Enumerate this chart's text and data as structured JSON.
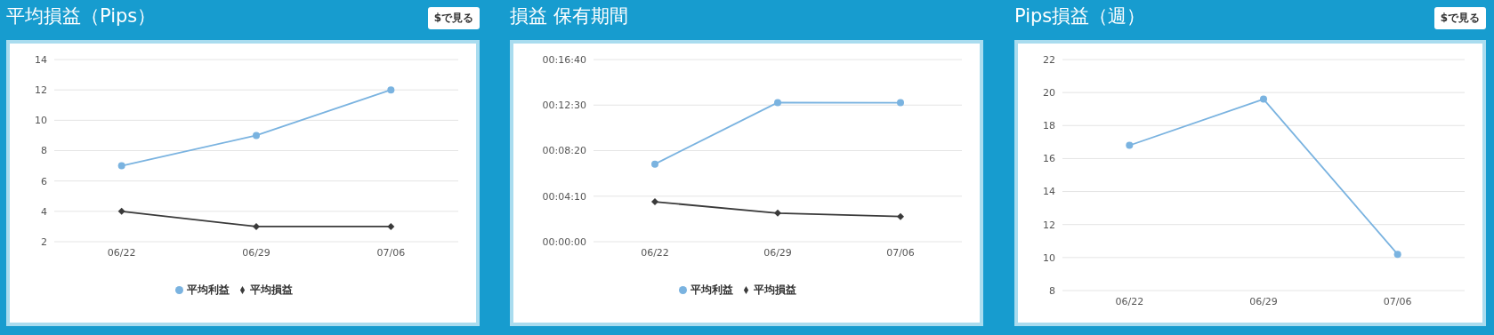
{
  "chart_data": [
    {
      "type": "line",
      "title": "平均損益（Pips）",
      "annotations": [
        "$で見る"
      ],
      "categories": [
        "06/22",
        "06/29",
        "07/06"
      ],
      "series": [
        {
          "name": "平均利益",
          "color": "#7ab3e0",
          "marker": "circle",
          "values": [
            7,
            9,
            12
          ]
        },
        {
          "name": "平均損益",
          "color": "#3a3a3a",
          "marker": "diamond",
          "values": [
            4,
            3,
            3
          ]
        }
      ],
      "ylim": [
        2,
        14
      ],
      "yticks": [
        2,
        4,
        6,
        8,
        10,
        12,
        14
      ],
      "grid": "y",
      "legend": "bottom"
    },
    {
      "type": "line",
      "title": "損益 保有期間",
      "categories": [
        "06/22",
        "06/29",
        "07/06"
      ],
      "series": [
        {
          "name": "平均利益",
          "color": "#7ab3e0",
          "marker": "circle",
          "values": [
            426,
            764,
            763
          ]
        },
        {
          "name": "平均損益",
          "color": "#3a3a3a",
          "marker": "diamond",
          "values": [
            219,
            157,
            138
          ]
        }
      ],
      "ylim": [
        0,
        1000
      ],
      "yticks": [
        {
          "value": 0,
          "label": "00:00:00"
        },
        {
          "value": 250,
          "label": "00:04:10"
        },
        {
          "value": 500,
          "label": "00:08:20"
        },
        {
          "value": 750,
          "label": "00:12:30"
        },
        {
          "value": 1000,
          "label": "00:16:40"
        }
      ],
      "grid": "y",
      "legend": "bottom"
    },
    {
      "type": "line",
      "title": "Pips損益（週）",
      "annotations": [
        "$で見る"
      ],
      "categories": [
        "06/22",
        "06/29",
        "07/06"
      ],
      "series": [
        {
          "color": "#7ab3e0",
          "marker": "circle",
          "values": [
            16.8,
            19.6,
            10.2
          ]
        }
      ],
      "ylim": [
        8,
        22
      ],
      "yticks": [
        8,
        10,
        12,
        14,
        16,
        18,
        20,
        22
      ],
      "grid": "y",
      "legend": false
    }
  ]
}
